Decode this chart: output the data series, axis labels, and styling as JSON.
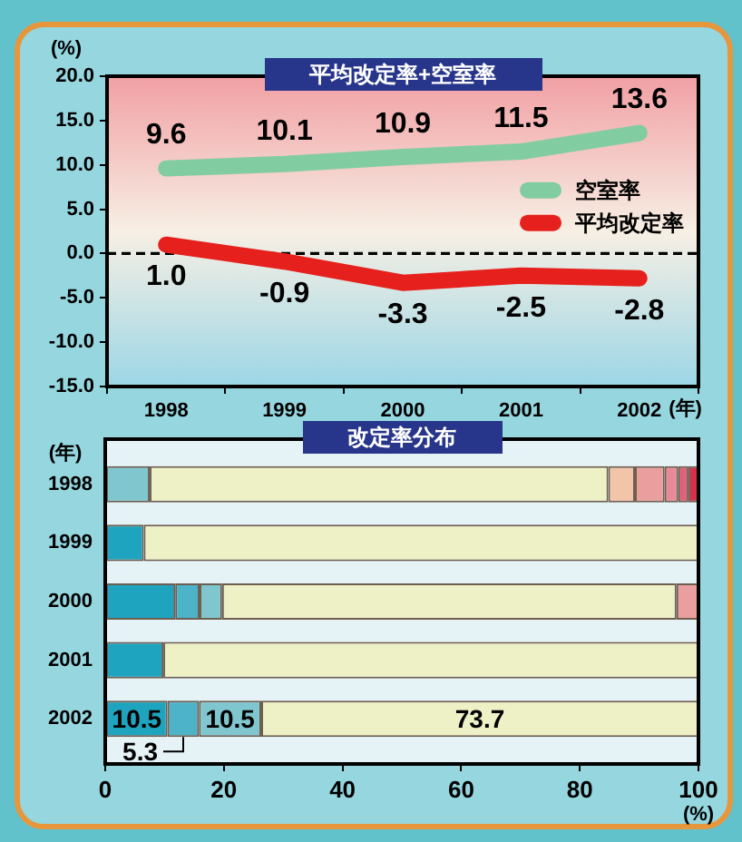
{
  "chart_data": [
    {
      "type": "line",
      "title": "平均改定率+空室率",
      "xlabel": "(年)",
      "ylabel": "(%)",
      "categories": [
        "1998",
        "1999",
        "2000",
        "2001",
        "2002"
      ],
      "series": [
        {
          "name": "空室率",
          "color": "#82cca2",
          "values": [
            9.6,
            10.1,
            10.9,
            11.5,
            13.6
          ],
          "value_labels": [
            "9.6",
            "10.1",
            "10.9",
            "11.5",
            "13.6"
          ]
        },
        {
          "name": "平均改定率",
          "color": "#e6201c",
          "values": [
            1.0,
            -0.9,
            -3.3,
            -2.5,
            -2.8
          ],
          "value_labels": [
            "1.0",
            "-0.9",
            "-3.3",
            "-2.5",
            "-2.8"
          ]
        }
      ],
      "ylim": [
        -15,
        20
      ],
      "yticks": [
        {
          "value": -15,
          "label": "-15.0"
        },
        {
          "value": -10,
          "label": "-10.0"
        },
        {
          "value": -5,
          "label": "-5.0"
        },
        {
          "value": 0,
          "label": "0.0"
        },
        {
          "value": 5,
          "label": "5.0"
        },
        {
          "value": 10,
          "label": "10.0"
        },
        {
          "value": 15,
          "label": "15.0"
        },
        {
          "value": 20,
          "label": "20.0"
        }
      ],
      "ref_lines": [
        {
          "axis": "y",
          "value": 0,
          "color": "#000000",
          "line_style": "dashed"
        }
      ],
      "legend": "right",
      "marker": "none"
    },
    {
      "type": "bar",
      "orientation": "horizontal",
      "stacked": true,
      "title": "改定率分布",
      "xlabel": "(%)",
      "ylabel": "(年)",
      "categories": [
        "1998",
        "1999",
        "2000",
        "2001",
        "2002"
      ],
      "series": [
        {
          "color": "#1fa4bf",
          "values": [
            null,
            6.5,
            11.8,
            9.8,
            10.5
          ],
          "value_labels": [
            null,
            null,
            null,
            null,
            "10.5"
          ]
        },
        {
          "color": "#4cb3c9",
          "values": [
            null,
            null,
            4.1,
            null,
            5.3
          ],
          "value_labels": [
            null,
            null,
            null,
            null,
            "5.3"
          ]
        },
        {
          "color": "#7fc6cf",
          "values": [
            7.5,
            null,
            3.8,
            null,
            10.5
          ],
          "value_labels": [
            null,
            null,
            null,
            null,
            "10.5"
          ]
        },
        {
          "color": "#eef0c6",
          "values": [
            77.3,
            93.5,
            76.6,
            90.2,
            73.7
          ],
          "value_labels": [
            null,
            null,
            null,
            null,
            "73.7"
          ]
        },
        {
          "color": "#f2c4a8",
          "values": [
            4.5,
            null,
            null,
            null,
            null
          ]
        },
        {
          "color": "#eb9e9e",
          "values": [
            5.0,
            null,
            3.7,
            null,
            null
          ]
        },
        {
          "color": "#e88a98",
          "values": [
            2.3,
            null,
            null,
            null,
            null
          ]
        },
        {
          "color": "#e2607a",
          "values": [
            1.7,
            null,
            null,
            null,
            null
          ]
        },
        {
          "color": "#d8304c",
          "values": [
            1.7,
            null,
            null,
            null,
            null
          ]
        }
      ],
      "xlim": [
        0,
        100
      ],
      "xticks": [
        0,
        20,
        40,
        60,
        80,
        100
      ]
    }
  ]
}
